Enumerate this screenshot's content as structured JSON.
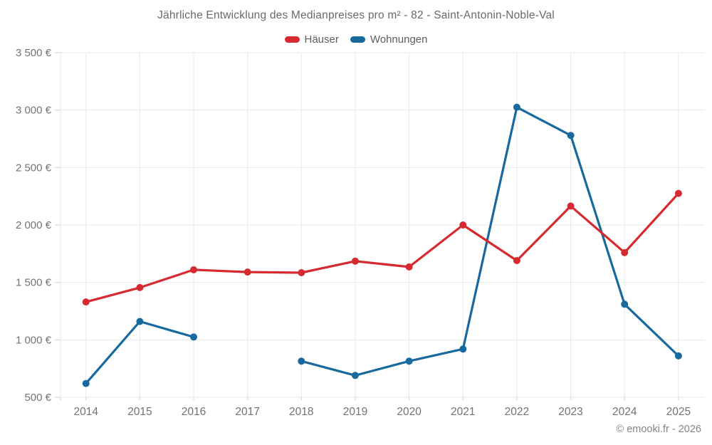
{
  "title": "Jährliche Entwicklung des Medianpreises pro m² - 82 - Saint-Antonin-Noble-Val",
  "legend": [
    {
      "label": "Häuser",
      "color": "#d62a30"
    },
    {
      "label": "Wohnungen",
      "color": "#17699e"
    }
  ],
  "footer": "© emooki.fr - 2026",
  "chart_data": {
    "type": "line",
    "title": "Jährliche Entwicklung des Medianpreises pro m² - 82 - Saint-Antonin-Noble-Val",
    "xlabel": "",
    "ylabel": "",
    "categories": [
      "2014",
      "2015",
      "2016",
      "2017",
      "2018",
      "2019",
      "2020",
      "2021",
      "2022",
      "2023",
      "2024",
      "2025"
    ],
    "series": [
      {
        "name": "Häuser",
        "color": "#d62a30",
        "values": [
          1330,
          1455,
          1610,
          1590,
          1585,
          1685,
          1635,
          2000,
          1690,
          2165,
          1760,
          2275
        ]
      },
      {
        "name": "Wohnungen",
        "color": "#17699e",
        "values": [
          620,
          1160,
          1025,
          null,
          815,
          690,
          815,
          920,
          3025,
          2780,
          1310,
          860
        ]
      }
    ],
    "y_ticks": [
      {
        "value": 500,
        "label": "500 €"
      },
      {
        "value": 1000,
        "label": "1 000 €"
      },
      {
        "value": 1500,
        "label": "1 500 €"
      },
      {
        "value": 2000,
        "label": "2 000 €"
      },
      {
        "value": 2500,
        "label": "2 500 €"
      },
      {
        "value": 3000,
        "label": "3 000 €"
      },
      {
        "value": 3500,
        "label": "3 500 €"
      }
    ],
    "ylim": [
      500,
      3500
    ],
    "grid": true,
    "legend_position": "top",
    "unit": "€ / m²"
  }
}
